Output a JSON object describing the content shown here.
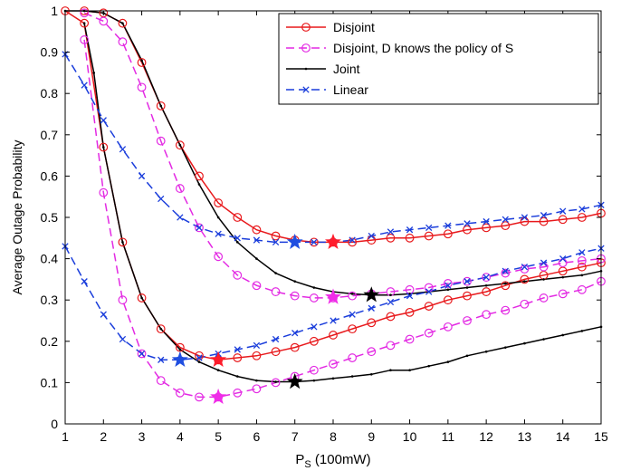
{
  "chart_data": {
    "type": "line",
    "xlabel": "P",
    "xlabel_sub": "S",
    "xlabel_suffix": " (100mW)",
    "ylabel": "Average Outage Probability",
    "xlim": [
      1,
      15
    ],
    "ylim": [
      0,
      1
    ],
    "xticks": [
      "1",
      "2",
      "3",
      "4",
      "5",
      "6",
      "7",
      "8",
      "9",
      "10",
      "11",
      "12",
      "13",
      "14",
      "15"
    ],
    "yticks": [
      "0",
      "0.1",
      "0.2",
      "0.3",
      "0.4",
      "0.5",
      "0.6",
      "0.7",
      "0.8",
      "0.9",
      "1"
    ],
    "grid": false,
    "legend_position": "top-right",
    "series": [
      {
        "name": "Disjoint",
        "color": "#e8191c",
        "dash": "solid",
        "marker": "circle",
        "curves": [
          {
            "x": [
              1.5,
              2,
              2.5,
              3,
              3.5,
              4,
              4.5,
              5,
              5.5,
              6,
              6.5,
              7,
              7.5,
              8,
              8.5,
              9,
              9.5,
              10,
              10.5,
              11,
              11.5,
              12,
              12.5,
              13,
              13.5,
              14,
              14.5,
              15
            ],
            "y": [
              1.0,
              0.995,
              0.97,
              0.875,
              0.77,
              0.675,
              0.6,
              0.535,
              0.5,
              0.47,
              0.455,
              0.445,
              0.44,
              0.44,
              0.44,
              0.445,
              0.45,
              0.45,
              0.455,
              0.46,
              0.47,
              0.475,
              0.48,
              0.49,
              0.49,
              0.495,
              0.5,
              0.51
            ]
          },
          {
            "x": [
              1,
              1.5,
              2,
              2.5,
              3,
              3.5,
              4,
              4.5,
              5,
              5.5,
              6,
              6.5,
              7,
              7.5,
              8,
              8.5,
              9,
              9.5,
              10,
              10.5,
              11,
              11.5,
              12,
              12.5,
              13,
              13.5,
              14,
              14.5,
              15
            ],
            "y": [
              1.0,
              0.97,
              0.67,
              0.44,
              0.305,
              0.23,
              0.185,
              0.165,
              0.155,
              0.16,
              0.165,
              0.175,
              0.185,
              0.2,
              0.215,
              0.23,
              0.245,
              0.26,
              0.27,
              0.285,
              0.3,
              0.31,
              0.32,
              0.335,
              0.35,
              0.36,
              0.37,
              0.38,
              0.39
            ]
          }
        ]
      },
      {
        "name": "Disjoint, D knows the policy of S",
        "color": "#e32ae3",
        "dash": "dashed",
        "marker": "circle",
        "curves": [
          {
            "x": [
              1.5,
              2,
              2.5,
              3,
              3.5,
              4,
              4.5,
              5,
              5.5,
              6,
              6.5,
              7,
              7.5,
              8,
              8.5,
              9,
              9.5,
              10,
              10.5,
              11,
              11.5,
              12,
              12.5,
              13,
              13.5,
              14,
              14.5,
              15
            ],
            "y": [
              0.995,
              0.975,
              0.925,
              0.815,
              0.685,
              0.57,
              0.475,
              0.405,
              0.36,
              0.335,
              0.32,
              0.31,
              0.305,
              0.305,
              0.31,
              0.315,
              0.32,
              0.325,
              0.33,
              0.34,
              0.345,
              0.355,
              0.365,
              0.375,
              0.38,
              0.39,
              0.395,
              0.4
            ]
          },
          {
            "x": [
              1.5,
              2,
              2.5,
              3,
              3.5,
              4,
              4.5,
              5,
              5.5,
              6,
              6.5,
              7,
              7.5,
              8,
              8.5,
              9,
              9.5,
              10,
              10.5,
              11,
              11.5,
              12,
              12.5,
              13,
              13.5,
              14,
              14.5,
              15
            ],
            "y": [
              0.93,
              0.56,
              0.3,
              0.17,
              0.105,
              0.075,
              0.065,
              0.065,
              0.075,
              0.085,
              0.1,
              0.115,
              0.13,
              0.145,
              0.16,
              0.175,
              0.19,
              0.205,
              0.22,
              0.235,
              0.25,
              0.265,
              0.275,
              0.29,
              0.305,
              0.315,
              0.325,
              0.345
            ]
          }
        ]
      },
      {
        "name": "Joint",
        "color": "#000000",
        "dash": "solid",
        "marker": "dot",
        "curves": [
          {
            "x": [
              1,
              1.5,
              2,
              2.5,
              3,
              3.5,
              4,
              4.5,
              5,
              5.5,
              6,
              6.5,
              7,
              7.5,
              8,
              8.5,
              9,
              9.5,
              10,
              10.5,
              11,
              11.5,
              12,
              12.5,
              13,
              13.5,
              14,
              14.5,
              15
            ],
            "y": [
              1.0,
              1.0,
              0.995,
              0.97,
              0.88,
              0.77,
              0.675,
              0.58,
              0.5,
              0.44,
              0.4,
              0.365,
              0.345,
              0.33,
              0.32,
              0.315,
              0.312,
              0.312,
              0.315,
              0.32,
              0.325,
              0.33,
              0.335,
              0.34,
              0.345,
              0.35,
              0.355,
              0.36,
              0.37
            ]
          },
          {
            "x": [
              1.5,
              1.75,
              2,
              2.5,
              3,
              3.5,
              4,
              4.5,
              5,
              5.5,
              6,
              6.5,
              7,
              7.5,
              8,
              8.5,
              9,
              9.5,
              10,
              10.5,
              11,
              11.5,
              12,
              12.5,
              13,
              13.5,
              14,
              14.5,
              15
            ],
            "y": [
              0.97,
              0.85,
              0.67,
              0.44,
              0.305,
              0.23,
              0.18,
              0.15,
              0.13,
              0.115,
              0.105,
              0.102,
              0.102,
              0.105,
              0.11,
              0.115,
              0.12,
              0.13,
              0.13,
              0.14,
              0.15,
              0.165,
              0.175,
              0.185,
              0.195,
              0.205,
              0.215,
              0.225,
              0.235
            ]
          }
        ]
      },
      {
        "name": "Linear",
        "color": "#1a3ddb",
        "dash": "dashed",
        "marker": "x",
        "curves": [
          {
            "x": [
              1,
              1.5,
              2,
              2.5,
              3,
              3.5,
              4,
              4.5,
              5,
              5.5,
              6,
              6.5,
              7,
              7.5,
              8,
              8.5,
              9,
              9.5,
              10,
              10.5,
              11,
              11.5,
              12,
              12.5,
              13,
              13.5,
              14,
              14.5,
              15
            ],
            "y": [
              0.895,
              0.82,
              0.735,
              0.665,
              0.6,
              0.545,
              0.5,
              0.475,
              0.46,
              0.45,
              0.445,
              0.44,
              0.44,
              0.44,
              0.44,
              0.445,
              0.455,
              0.465,
              0.47,
              0.475,
              0.48,
              0.485,
              0.49,
              0.495,
              0.5,
              0.505,
              0.515,
              0.52,
              0.53
            ]
          },
          {
            "x": [
              1,
              1.5,
              2,
              2.5,
              3,
              3.5,
              4,
              4.5,
              5,
              5.5,
              6,
              6.5,
              7,
              7.5,
              8,
              8.5,
              9,
              9.5,
              10,
              10.5,
              11,
              11.5,
              12,
              12.5,
              13,
              13.5,
              14,
              14.5,
              15
            ],
            "y": [
              0.43,
              0.345,
              0.265,
              0.205,
              0.17,
              0.155,
              0.155,
              0.16,
              0.17,
              0.18,
              0.19,
              0.205,
              0.22,
              0.235,
              0.25,
              0.265,
              0.28,
              0.295,
              0.31,
              0.32,
              0.335,
              0.345,
              0.355,
              0.37,
              0.38,
              0.39,
              0.4,
              0.415,
              0.425
            ]
          }
        ]
      }
    ],
    "optimal_points": [
      {
        "x": 7,
        "y": 0.44,
        "color": "#1f4ee0"
      },
      {
        "x": 8,
        "y": 0.44,
        "color": "#ff1c2b"
      },
      {
        "x": 8,
        "y": 0.307,
        "color": "#f02ce8"
      },
      {
        "x": 9,
        "y": 0.312,
        "color": "#000000"
      },
      {
        "x": 4,
        "y": 0.155,
        "color": "#1f4ee0"
      },
      {
        "x": 5,
        "y": 0.155,
        "color": "#ff1c2b"
      },
      {
        "x": 5,
        "y": 0.065,
        "color": "#f02ce8"
      },
      {
        "x": 7,
        "y": 0.102,
        "color": "#000000"
      }
    ]
  }
}
